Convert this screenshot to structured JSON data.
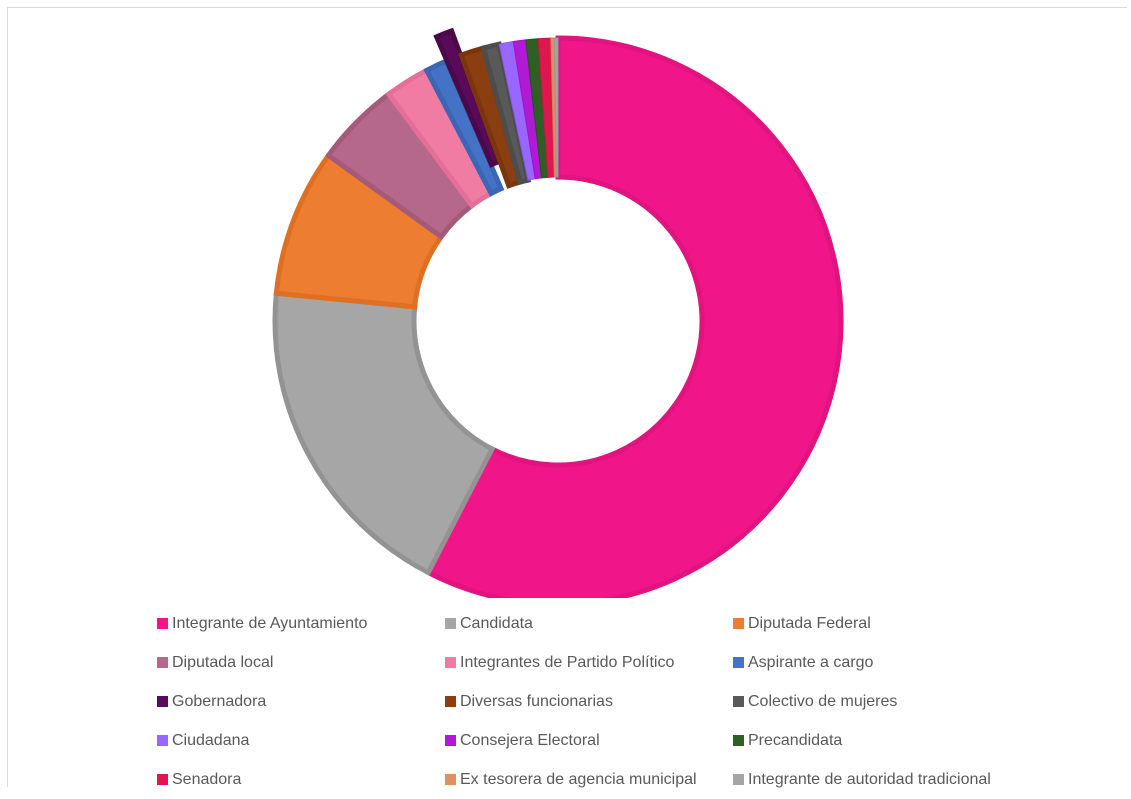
{
  "chart_data": {
    "type": "pie",
    "style": "donut",
    "title": "",
    "legend_position": "bottom",
    "exploded_slice": "Gobernadora",
    "categories": [
      "Integrante de Ayuntamiento",
      "Candidata",
      "Diputada Federal",
      "Diputada local",
      "Integrantes de Partido Político",
      "Aspirante a cargo",
      "Gobernadora",
      "Diversas funcionarias",
      "Colectivo de mujeres",
      "Ciudadana",
      "Consejera Electoral",
      "Precandidata",
      "Senadora",
      "Ex tesorera de agencia municipal",
      "Integrante de autoridad tradicional"
    ],
    "values": [
      57.0,
      18.8,
      8.3,
      4.8,
      2.5,
      1.2,
      0.9,
      1.3,
      0.9,
      0.8,
      0.7,
      0.7,
      0.7,
      0.2,
      0.2
    ],
    "colors": [
      "#f0168a",
      "#a6a6a6",
      "#ed7d31",
      "#b5688a",
      "#f07ba3",
      "#4472c4",
      "#5a0a5a",
      "#8b3e0f",
      "#595959",
      "#9966ff",
      "#b01ad4",
      "#2f5f24",
      "#e0174f",
      "#e08f5f",
      "#a5a5a5"
    ],
    "borders": [
      "#e0137f",
      "#939393",
      "#e06f22",
      "#a55a7b",
      "#e56f98",
      "#3b66b3",
      "#4a0a4a",
      "#7a350c",
      "#4d4d4d",
      "#8a57f0",
      "#a014c4",
      "#27521e",
      "#cc1446",
      "#d3834f",
      "#969696"
    ]
  }
}
